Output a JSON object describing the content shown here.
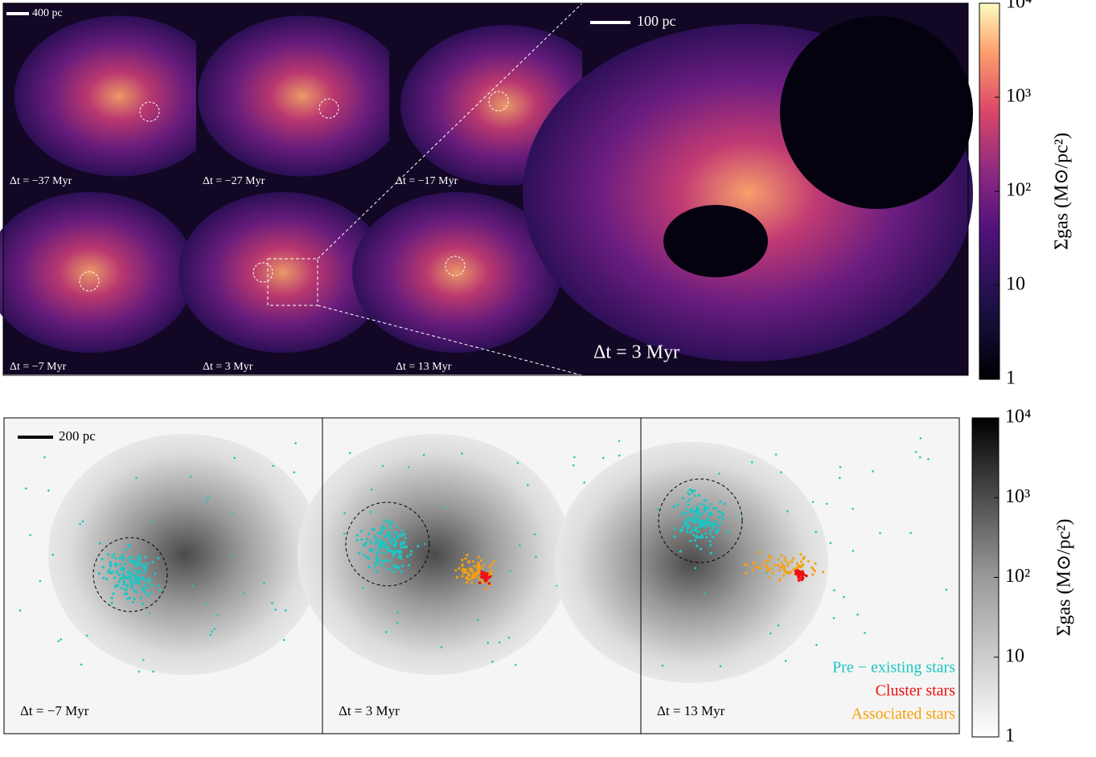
{
  "top": {
    "scale_bar_small": "400 pc",
    "scale_bar_zoom": "100 pc",
    "panels": [
      "Δt = −37 Myr",
      "Δt = −27 Myr",
      "Δt = −17 Myr",
      "Δt = −7 Myr",
      "Δt = 3 Myr",
      "Δt = 13 Myr"
    ],
    "zoom_label": "Δt = 3 Myr",
    "colorbar": {
      "label": "Σgas (M⊙/pc²)",
      "log": true,
      "lim": [
        1,
        10000
      ],
      "ticks": [
        1,
        10,
        {
          "value": 100,
          "label": "10²"
        },
        {
          "value": 1000,
          "label": "10³"
        },
        {
          "value": 10000,
          "label": "10⁴"
        }
      ]
    }
  },
  "bottom": {
    "scale_bar": "200 pc",
    "panels": [
      "Δt = −7 Myr",
      "Δt = 3 Myr",
      "Δt = 13 Myr"
    ],
    "legend": [
      {
        "name": "Pre − existing stars",
        "color": "#1cc6c4"
      },
      {
        "name": "Cluster stars",
        "color": "#ee1111"
      },
      {
        "name": "Associated stars",
        "color": "#f7a10a"
      }
    ],
    "colorbar": {
      "label": "Σgas (M⊙/pc²)",
      "log": true,
      "lim": [
        1,
        10000
      ],
      "ticks": [
        1,
        10,
        {
          "value": 100,
          "label": "10²"
        },
        {
          "value": 1000,
          "label": "10³"
        },
        {
          "value": 10000,
          "label": "10⁴"
        }
      ]
    }
  }
}
